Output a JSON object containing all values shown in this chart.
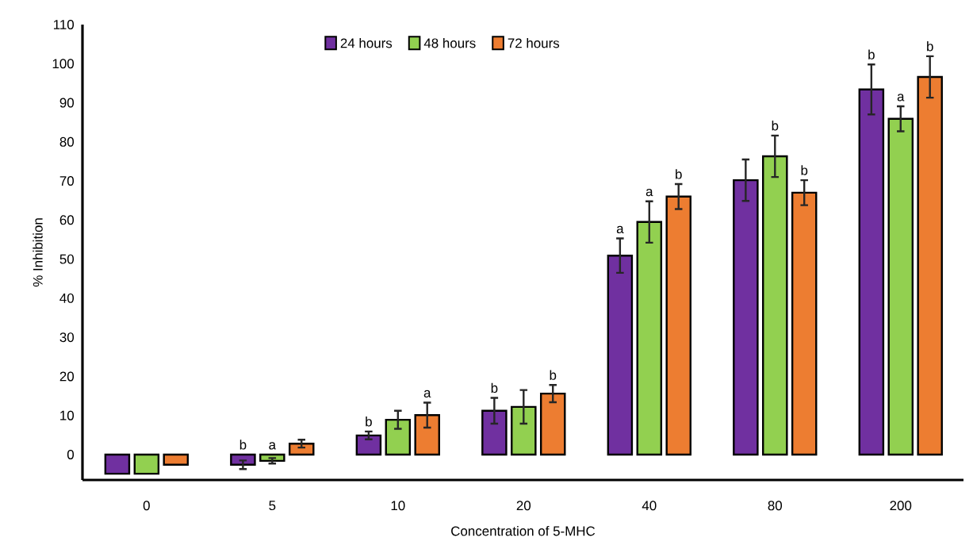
{
  "chart_data": {
    "type": "bar",
    "xlabel": "Concentration of 5-MHC",
    "ylabel": "% Inhibition",
    "categories": [
      "0",
      "5",
      "10",
      "20",
      "40",
      "80",
      "200"
    ],
    "series": [
      {
        "name": "24 hours",
        "color": "#7030a0",
        "values": [
          -4.9,
          -2.6,
          4.9,
          11.2,
          50.9,
          70.2,
          93.4
        ],
        "errors": [
          null,
          1.1,
          1.0,
          3.3,
          4.4,
          5.3,
          6.4
        ],
        "value_labels": [
          null,
          "b",
          "b",
          "b",
          "a",
          null,
          "b"
        ]
      },
      {
        "name": "48 hours",
        "color": "#92d050",
        "values": [
          -4.9,
          -1.6,
          8.9,
          12.2,
          59.5,
          76.3,
          85.9
        ],
        "errors": [
          null,
          0.7,
          2.3,
          4.3,
          5.3,
          5.3,
          3.2
        ],
        "value_labels": [
          null,
          "a",
          null,
          null,
          "a",
          "b",
          "a"
        ]
      },
      {
        "name": "72 hours",
        "color": "#ed7d31",
        "values": [
          -2.6,
          2.8,
          10.1,
          15.6,
          66.0,
          67.0,
          96.6
        ],
        "errors": [
          null,
          1.0,
          3.2,
          2.2,
          3.2,
          3.2,
          5.3
        ],
        "value_labels": [
          null,
          null,
          "a",
          "b",
          "b",
          "b",
          "b"
        ]
      }
    ],
    "ylim": [
      -6.5,
      110
    ],
    "yticks": [
      0,
      10,
      20,
      30,
      40,
      50,
      60,
      70,
      80,
      90,
      100,
      110
    ],
    "grid": false,
    "legend": "top"
  }
}
